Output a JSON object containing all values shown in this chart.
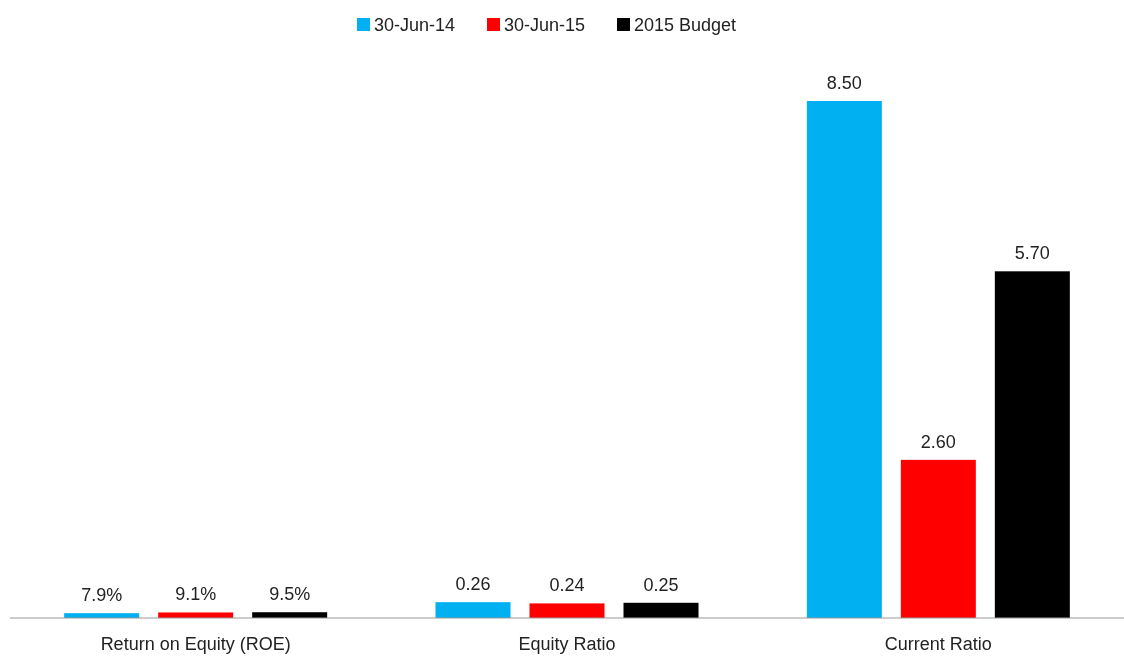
{
  "chart_data": {
    "type": "bar",
    "categories": [
      "Return on Equity (ROE)",
      "Equity Ratio",
      "Current Ratio"
    ],
    "series": [
      {
        "name": "30-Jun-14",
        "color": "#00b0f0",
        "values": [
          0.079,
          0.26,
          8.5
        ],
        "value_labels": [
          "7.9%",
          "0.26",
          "8.50"
        ]
      },
      {
        "name": "30-Jun-15",
        "color": "#ff0000",
        "values": [
          0.091,
          0.24,
          2.6
        ],
        "value_labels": [
          "9.1%",
          "0.24",
          "2.60"
        ]
      },
      {
        "name": "2015 Budget",
        "color": "#000000",
        "values": [
          0.095,
          0.25,
          5.7
        ],
        "value_labels": [
          "9.5%",
          "0.25",
          "5.70"
        ]
      }
    ],
    "legend": "top",
    "tick_labels": "x"
  }
}
